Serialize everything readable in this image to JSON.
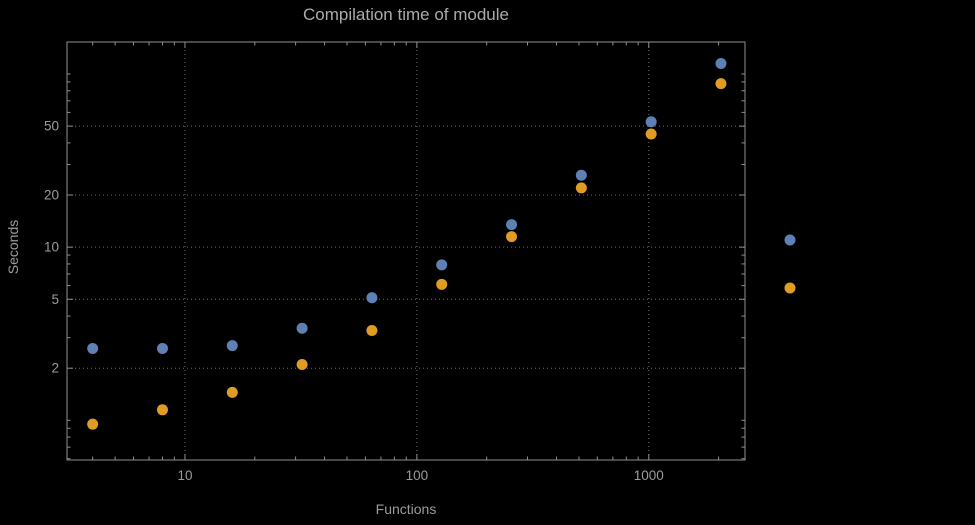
{
  "title": "Compilation time of module",
  "xlabel": "Functions",
  "ylabel": "Seconds",
  "colors": {
    "background": "#000000",
    "title_text": "#ababab",
    "tick_text": "#9b9b9b",
    "grid": "#6e6e6e",
    "frame": "#8f8f8f",
    "series1": "#5e81b5",
    "series2": "#e19c24"
  },
  "chart_data": {
    "type": "scatter",
    "title": "Compilation time of module",
    "xlabel": "Functions",
    "ylabel": "Seconds",
    "x_scale": "log",
    "y_scale": "log",
    "x": [
      4,
      8,
      16,
      32,
      64,
      128,
      256,
      512,
      1024,
      2048
    ],
    "series": [
      {
        "name": "series-1-blue",
        "color": "#5e81b5",
        "values": [
          2.6,
          2.6,
          2.7,
          3.4,
          5.1,
          7.9,
          13.5,
          26,
          53,
          115
        ]
      },
      {
        "name": "series-2-orange",
        "color": "#e19c24",
        "values": [
          0.95,
          1.15,
          1.45,
          2.1,
          3.3,
          6.1,
          11.5,
          22,
          45,
          88
        ]
      }
    ],
    "x_ticks": [
      10,
      100,
      1000
    ],
    "x_tick_labels": [
      "10",
      "100",
      "1000"
    ],
    "y_ticks": [
      2,
      5,
      10,
      20,
      50
    ],
    "y_tick_labels": [
      "2",
      "5",
      "10",
      "20",
      "50"
    ],
    "xlim": [
      3.1,
      2600
    ],
    "ylim": [
      0.59,
      153
    ],
    "grid": "dotted",
    "legend": {
      "position": "right-outside",
      "labels_visible": false,
      "marker_count": 2
    }
  }
}
